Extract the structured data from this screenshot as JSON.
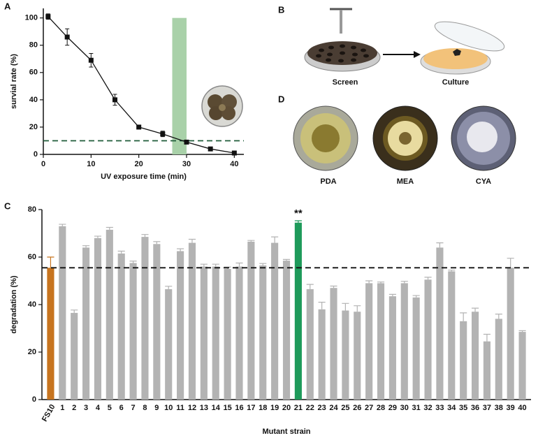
{
  "panel_letters": [
    "A",
    "B",
    "C",
    "D"
  ],
  "panel_b": {
    "labels": [
      "Screen",
      "Culture"
    ]
  },
  "panel_d": {
    "labels": [
      "PDA",
      "MEA",
      "CYA"
    ]
  },
  "chart_data": [
    {
      "type": "line",
      "xlabel": "UV exposure time (min)",
      "ylabel": "survial rate (%)",
      "x": [
        1,
        5,
        10,
        15,
        20,
        25,
        30,
        35,
        40
      ],
      "values": [
        101,
        86,
        69,
        40,
        20,
        15,
        9,
        4,
        1
      ],
      "errors": [
        2,
        6,
        5,
        4,
        1,
        2,
        1,
        1,
        1
      ],
      "color": "#111111",
      "xlim": [
        0,
        42
      ],
      "ylim": [
        0,
        107
      ],
      "xticks": [
        0,
        10,
        20,
        30,
        40
      ],
      "yticks": [
        0,
        20,
        40,
        60,
        80,
        100
      ],
      "reference_line": {
        "y": 10,
        "color": "#1f5c3a",
        "dashed": true
      },
      "highlight_band": {
        "x": [
          27,
          30
        ],
        "y": 100,
        "color": "#a9d1a9"
      }
    },
    {
      "type": "bar",
      "xlabel": "Mutant strain",
      "ylabel": "degradation (%)",
      "categories": [
        "FS10",
        "1",
        "2",
        "3",
        "4",
        "5",
        "6",
        "7",
        "8",
        "9",
        "10",
        "11",
        "12",
        "13",
        "14",
        "15",
        "16",
        "17",
        "18",
        "19",
        "20",
        "21",
        "22",
        "23",
        "24",
        "25",
        "26",
        "27",
        "28",
        "29",
        "30",
        "31",
        "32",
        "33",
        "34",
        "35",
        "36",
        "37",
        "38",
        "39",
        "40"
      ],
      "values": [
        55.5,
        73,
        36.5,
        64,
        68,
        71.5,
        61.5,
        57.5,
        68.5,
        65.5,
        46.5,
        62.5,
        66,
        56,
        56,
        55,
        56,
        66.5,
        56.5,
        66,
        58.5,
        74.5,
        46.5,
        38,
        47,
        37.5,
        37,
        49,
        49,
        43.5,
        49,
        43,
        50.5,
        64,
        54,
        33,
        37,
        24.5,
        34,
        55.5,
        28.5
      ],
      "errors": [
        4.5,
        0.8,
        1.2,
        0.8,
        0.8,
        1,
        1,
        0.8,
        1,
        1,
        1.2,
        1,
        1.5,
        1,
        1,
        0.8,
        1.5,
        0.5,
        0.8,
        2.5,
        0.5,
        0.8,
        2,
        3,
        0.8,
        3,
        2.5,
        1,
        0.5,
        0.8,
        0.8,
        0.8,
        1,
        2,
        0.5,
        3.5,
        1.5,
        3,
        2,
        4,
        0.5
      ],
      "colors": [
        "#c7741f",
        "#b3b3b3",
        "#b3b3b3",
        "#b3b3b3",
        "#b3b3b3",
        "#b3b3b3",
        "#b3b3b3",
        "#b3b3b3",
        "#b3b3b3",
        "#b3b3b3",
        "#b3b3b3",
        "#b3b3b3",
        "#b3b3b3",
        "#b3b3b3",
        "#b3b3b3",
        "#b3b3b3",
        "#b3b3b3",
        "#b3b3b3",
        "#b3b3b3",
        "#b3b3b3",
        "#b3b3b3",
        "#1e9a5a",
        "#b3b3b3",
        "#b3b3b3",
        "#b3b3b3",
        "#b3b3b3",
        "#b3b3b3",
        "#b3b3b3",
        "#b3b3b3",
        "#b3b3b3",
        "#b3b3b3",
        "#b3b3b3",
        "#b3b3b3",
        "#b3b3b3",
        "#b3b3b3",
        "#b3b3b3",
        "#b3b3b3",
        "#b3b3b3",
        "#b3b3b3",
        "#b3b3b3",
        "#b3b3b3"
      ],
      "ylim": [
        0,
        80
      ],
      "yticks": [
        0,
        20,
        40,
        60,
        80
      ],
      "reference_line": {
        "y": 55.5,
        "color": "#111111",
        "dashed": true
      },
      "annotations": [
        {
          "category": "21",
          "text": "**"
        }
      ]
    }
  ]
}
